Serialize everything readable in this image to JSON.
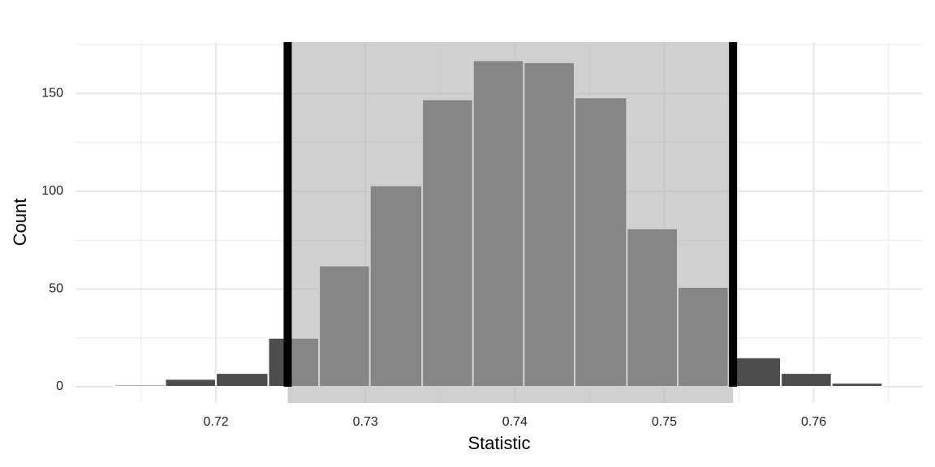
{
  "chart_data": {
    "type": "histogram",
    "x_label": "Statistic",
    "y_label": "Count",
    "bins": [
      0.7132,
      0.7166,
      0.72,
      0.7235,
      0.7269,
      0.7303,
      0.7338,
      0.7372,
      0.7406,
      0.744,
      0.7475,
      0.7509,
      0.7543,
      0.7578,
      0.7612,
      0.7646
    ],
    "values": [
      1,
      4,
      7,
      25,
      62,
      103,
      147,
      167,
      166,
      148,
      81,
      51,
      15,
      7,
      2
    ],
    "color": "#4d4d4d",
    "interval": [
      0.7248,
      0.7546
    ],
    "interval_color": "#afafaf",
    "interval_line_color": "#000000",
    "xlim": [
      0.7106,
      0.7673
    ],
    "xticks": [
      0.72,
      0.73,
      0.74,
      0.75,
      0.76
    ],
    "ylim": [
      -8.3,
      176.3
    ],
    "yticks": [
      0,
      50,
      100,
      150
    ],
    "grid": true
  }
}
